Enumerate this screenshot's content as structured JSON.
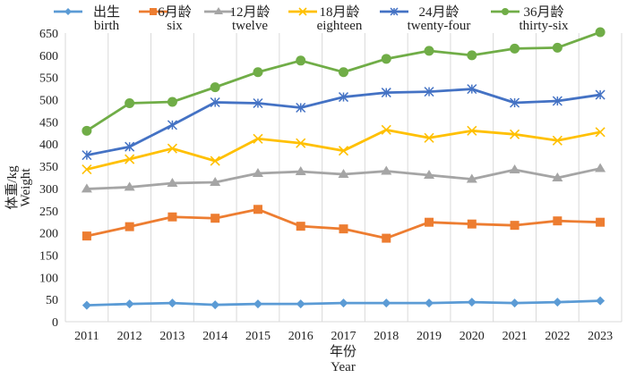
{
  "chart_data": {
    "type": "line",
    "title": "",
    "xlabel": "年份",
    "xlabel_en": "Year",
    "ylabel": "体重/kg",
    "ylabel_en": "Weight",
    "ylim": [
      0,
      650
    ],
    "yticks": [
      0,
      50,
      100,
      150,
      200,
      250,
      300,
      350,
      400,
      450,
      500,
      550,
      600,
      650
    ],
    "grid": "vertical",
    "legend_position": "top",
    "categories": [
      "2011",
      "2012",
      "2013",
      "2014",
      "2015",
      "2016",
      "2017",
      "2018",
      "2019",
      "2020",
      "2021",
      "2022",
      "2023"
    ],
    "series": [
      {
        "name": "出生",
        "name_en": "birth",
        "color": "#5B9BD5",
        "marker": "diamond",
        "values": [
          37,
          40,
          42,
          38,
          40,
          40,
          42,
          42,
          42,
          44,
          42,
          44,
          47
        ]
      },
      {
        "name": "6月龄",
        "name_en": "six",
        "color": "#ED7D31",
        "marker": "square",
        "values": [
          193,
          214,
          236,
          233,
          253,
          215,
          209,
          188,
          224,
          220,
          217,
          227,
          224
        ]
      },
      {
        "name": "12月龄",
        "name_en": "twelve",
        "color": "#A5A5A5",
        "marker": "triangle",
        "values": [
          299,
          303,
          312,
          314,
          334,
          338,
          332,
          339,
          330,
          321,
          342,
          324,
          345
        ]
      },
      {
        "name": "18月龄",
        "name_en": "eighteen",
        "color": "#FFC000",
        "marker": "x",
        "values": [
          343,
          366,
          390,
          362,
          412,
          402,
          385,
          432,
          414,
          430,
          422,
          408,
          427
        ]
      },
      {
        "name": "24月龄",
        "name_en": "twenty-four",
        "color": "#4472C4",
        "marker": "star",
        "values": [
          375,
          394,
          443,
          494,
          492,
          482,
          506,
          516,
          518,
          524,
          493,
          497,
          511
        ]
      },
      {
        "name": "36月龄",
        "name_en": "thirty-six",
        "color": "#70AD47",
        "marker": "circle",
        "values": [
          430,
          492,
          495,
          528,
          562,
          588,
          562,
          592,
          610,
          600,
          615,
          617,
          652
        ]
      }
    ]
  }
}
